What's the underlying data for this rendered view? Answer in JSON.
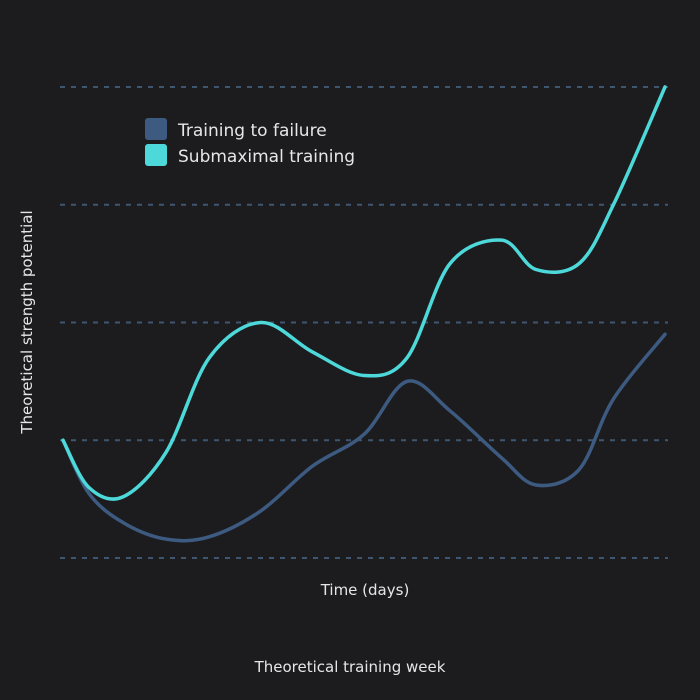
{
  "chart_data": {
    "type": "line",
    "title": "",
    "xlabel": "Time (days)",
    "ylabel": "Theoretical strength potential",
    "footer": "Theoretical training week",
    "xlim": [
      0,
      7
    ],
    "ylim": [
      0,
      4
    ],
    "grid": true,
    "legend_position": "top-left",
    "series": [
      {
        "name": "Training to failure",
        "color": "#3d5a80",
        "x": [
          0,
          0.3,
          0.7,
          1.2,
          1.7,
          2.3,
          2.9,
          3.5,
          4.0,
          4.5,
          5.1,
          5.5,
          6.0,
          6.4,
          7.0
        ],
        "y": [
          1.0,
          0.55,
          0.3,
          0.16,
          0.18,
          0.4,
          0.78,
          1.05,
          1.5,
          1.25,
          0.85,
          0.62,
          0.75,
          1.35,
          1.9
        ]
      },
      {
        "name": "Submaximal training",
        "color": "#4dd9d9",
        "x": [
          0,
          0.3,
          0.7,
          1.2,
          1.7,
          2.3,
          2.9,
          3.5,
          4.0,
          4.5,
          5.1,
          5.5,
          6.0,
          6.4,
          7.0
        ],
        "y": [
          1.0,
          0.6,
          0.52,
          0.9,
          1.7,
          2.0,
          1.75,
          1.55,
          1.7,
          2.5,
          2.7,
          2.45,
          2.5,
          3.0,
          4.0
        ]
      }
    ]
  }
}
